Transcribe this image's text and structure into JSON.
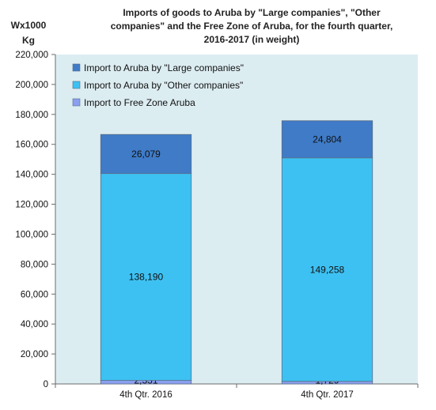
{
  "chart_data": {
    "type": "bar",
    "stacked": true,
    "title": "Imports of goods to Aruba by \"Large companies\", \"Other companies\" and the Free Zone of Aruba, for the fourth quarter, 2016-2017 (in weight)",
    "title_lines": [
      "Imports of goods to Aruba by \"Large companies\", \"Other",
      "companies\" and the Free Zone of Aruba, for the fourth quarter,",
      "2016-2017 (in weight)"
    ],
    "ylabel_lines": [
      "Wx1000",
      "Kg"
    ],
    "xlabel": "",
    "ylim": [
      0,
      220000
    ],
    "yticks": [
      0,
      20000,
      40000,
      60000,
      80000,
      100000,
      120000,
      140000,
      160000,
      180000,
      200000,
      220000
    ],
    "ytick_labels": [
      "0",
      "20,000",
      "40,000",
      "60,000",
      "80,000",
      "100,000",
      "120,000",
      "140,000",
      "160,000",
      "180,000",
      "200,000",
      "220,000"
    ],
    "categories": [
      "4th Qtr. 2016",
      "4th Qtr. 2017"
    ],
    "series": [
      {
        "name": "Import to Free Zone Aruba",
        "values": [
          2331,
          1729
        ],
        "labels": [
          "2,331",
          "1,729"
        ],
        "color": "#8b9ff0"
      },
      {
        "name": "Import to Aruba by \"Other companies\"",
        "values": [
          138190,
          149258
        ],
        "labels": [
          "138,190",
          "149,258"
        ],
        "color": "#3dc1f2"
      },
      {
        "name": "Import to Aruba by \"Large companies\"",
        "values": [
          26079,
          24804
        ],
        "labels": [
          "26,079",
          "24,804"
        ],
        "color": "#3f7bc7"
      }
    ],
    "legend_order": [
      2,
      1,
      0
    ],
    "legend_position": "top-left",
    "grid": false,
    "plot_background": "#dcedf2"
  }
}
